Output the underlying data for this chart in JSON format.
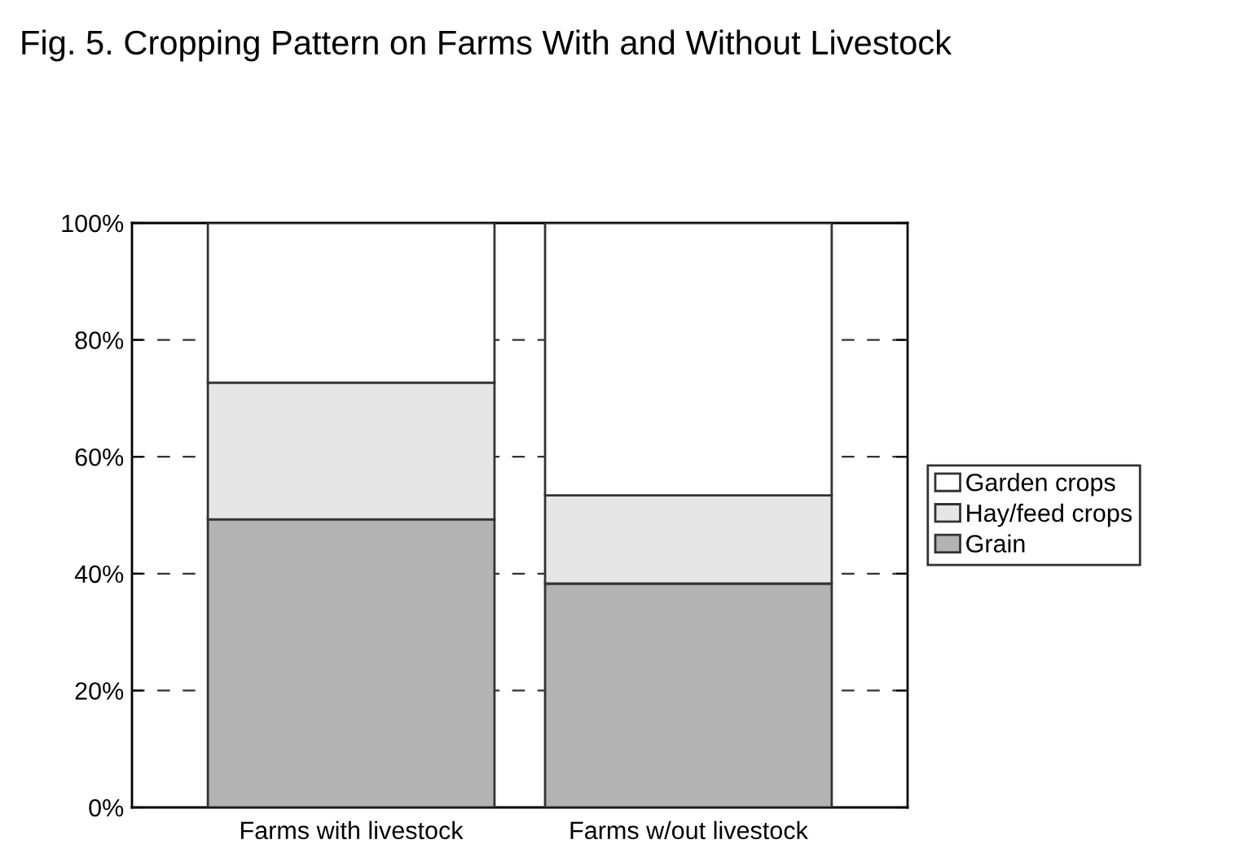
{
  "chart_data": {
    "type": "bar",
    "title": "Fig. 5. Cropping Pattern on Farms With and Without Livestock",
    "categories": [
      "Farms with livestock",
      "Farms w/out livestock"
    ],
    "stacked": true,
    "series": [
      {
        "name": "Grain",
        "color": "#b3b3b3",
        "values": [
          49.3,
          38.3
        ]
      },
      {
        "name": "Hay/feed crops",
        "color": "#e6e6e6",
        "values": [
          23.4,
          15.1
        ]
      },
      {
        "name": "Garden crops",
        "color": "#ffffff",
        "values": [
          27.3,
          46.6
        ]
      }
    ],
    "ylim": [
      0,
      100
    ],
    "yticks": [
      {
        "value": 0,
        "label": "0%"
      },
      {
        "value": 20,
        "label": "20%"
      },
      {
        "value": 40,
        "label": "40%"
      },
      {
        "value": 60,
        "label": "60%"
      },
      {
        "value": 80,
        "label": "80%"
      },
      {
        "value": 100,
        "label": "100%"
      }
    ],
    "grid": "y",
    "legend": "right"
  }
}
